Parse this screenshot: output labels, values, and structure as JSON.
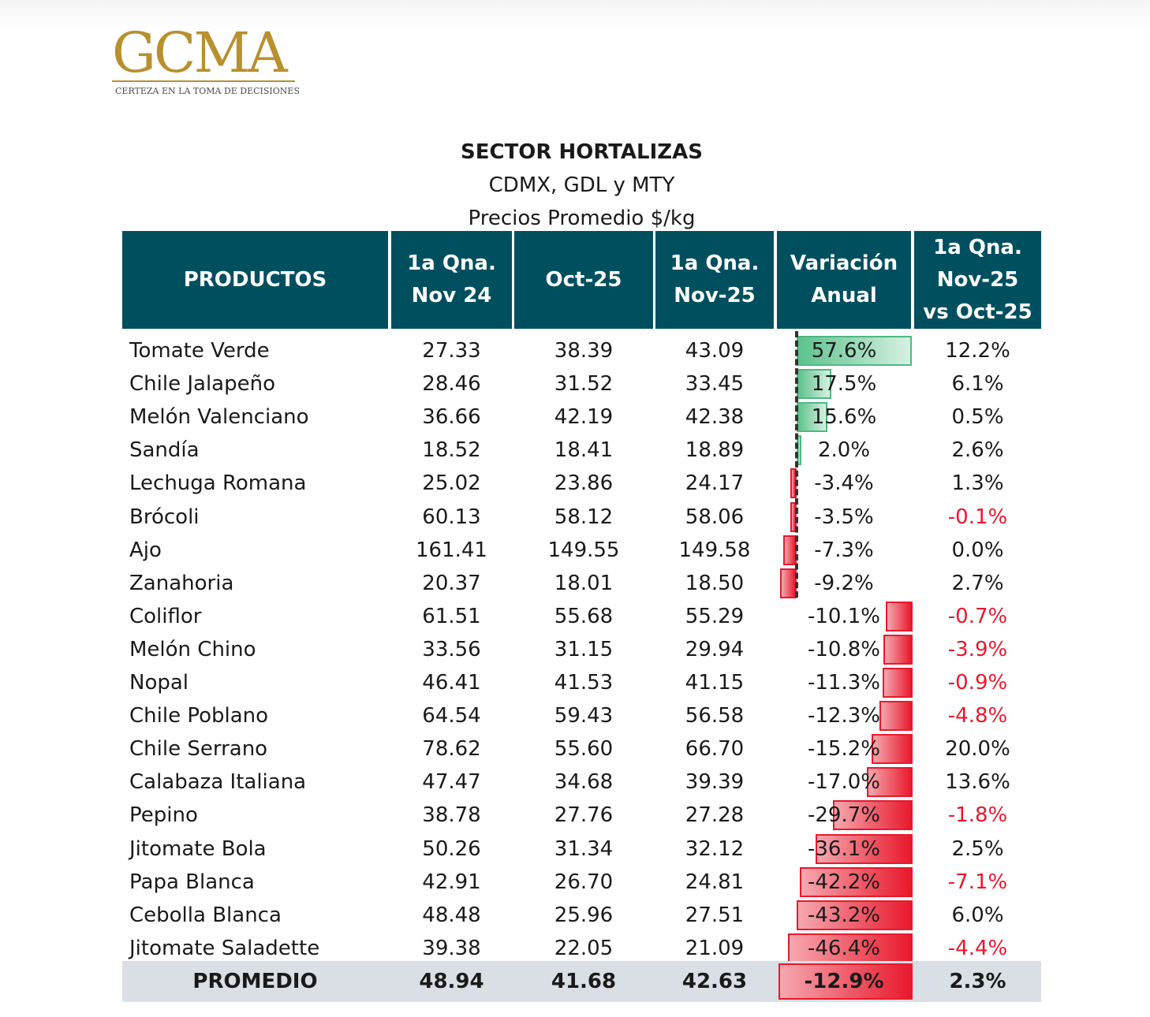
{
  "logo": {
    "name": "GCMA",
    "tagline": "CERTEZA EN LA TOMA DE DECISIONES"
  },
  "titles": {
    "main": "SECTOR HORTALIZAS",
    "sub": "CDMX, GDL y MTY",
    "unit": "Precios Promedio $/kg"
  },
  "headers": {
    "productos": "PRODUCTOS",
    "col1_l1": "1a Qna.",
    "col1_l2": "Nov 24",
    "col2": "Oct-25",
    "col3_l1": "1a Qna.",
    "col3_l2": "Nov-25",
    "col4_l1": "Variación",
    "col4_l2": "Anual",
    "col5_l1": "1a Qna.",
    "col5_l2": "Nov-25",
    "col5_l3": "vs Oct-25"
  },
  "colors": {
    "header_bg": "#004f5f",
    "positive": "#4eb882",
    "negative": "#e8192c",
    "avg_bg": "#d9dfe4"
  },
  "rows": [
    {
      "name": "Tomate Verde",
      "nov24": "27.33",
      "oct25": "38.39",
      "nov25": "43.09",
      "var": "57.6%",
      "var_value": 57.6,
      "vs": "12.2%",
      "vs_neg": false
    },
    {
      "name": "Chile Jalapeño",
      "nov24": "28.46",
      "oct25": "31.52",
      "nov25": "33.45",
      "var": "17.5%",
      "var_value": 17.5,
      "vs": "6.1%",
      "vs_neg": false
    },
    {
      "name": "Melón Valenciano",
      "nov24": "36.66",
      "oct25": "42.19",
      "nov25": "42.38",
      "var": "15.6%",
      "var_value": 15.6,
      "vs": "0.5%",
      "vs_neg": false
    },
    {
      "name": "Sandía",
      "nov24": "18.52",
      "oct25": "18.41",
      "nov25": "18.89",
      "var": "2.0%",
      "var_value": 2.0,
      "vs": "2.6%",
      "vs_neg": false
    },
    {
      "name": "Lechuga Romana",
      "nov24": "25.02",
      "oct25": "23.86",
      "nov25": "24.17",
      "var": "-3.4%",
      "var_value": -3.4,
      "vs": "1.3%",
      "vs_neg": false
    },
    {
      "name": "Brócoli",
      "nov24": "60.13",
      "oct25": "58.12",
      "nov25": "58.06",
      "var": "-3.5%",
      "var_value": -3.5,
      "vs": "-0.1%",
      "vs_neg": true
    },
    {
      "name": "Ajo",
      "nov24": "161.41",
      "oct25": "149.55",
      "nov25": "149.58",
      "var": "-7.3%",
      "var_value": -7.3,
      "vs": "0.0%",
      "vs_neg": false
    },
    {
      "name": "Zanahoria",
      "nov24": "20.37",
      "oct25": "18.01",
      "nov25": "18.50",
      "var": "-9.2%",
      "var_value": -9.2,
      "vs": "2.7%",
      "vs_neg": false
    },
    {
      "name": "Coliflor",
      "nov24": "61.51",
      "oct25": "55.68",
      "nov25": "55.29",
      "var": "-10.1%",
      "var_value": -10.1,
      "vs": "-0.7%",
      "vs_neg": true
    },
    {
      "name": "Melón Chino",
      "nov24": "33.56",
      "oct25": "31.15",
      "nov25": "29.94",
      "var": "-10.8%",
      "var_value": -10.8,
      "vs": "-3.9%",
      "vs_neg": true
    },
    {
      "name": "Nopal",
      "nov24": "46.41",
      "oct25": "41.53",
      "nov25": "41.15",
      "var": "-11.3%",
      "var_value": -11.3,
      "vs": "-0.9%",
      "vs_neg": true
    },
    {
      "name": "Chile Poblano",
      "nov24": "64.54",
      "oct25": "59.43",
      "nov25": "56.58",
      "var": "-12.3%",
      "var_value": -12.3,
      "vs": "-4.8%",
      "vs_neg": true
    },
    {
      "name": "Chile Serrano",
      "nov24": "78.62",
      "oct25": "55.60",
      "nov25": "66.70",
      "var": "-15.2%",
      "var_value": -15.2,
      "vs": "20.0%",
      "vs_neg": false
    },
    {
      "name": "Calabaza Italiana",
      "nov24": "47.47",
      "oct25": "34.68",
      "nov25": "39.39",
      "var": "-17.0%",
      "var_value": -17.0,
      "vs": "13.6%",
      "vs_neg": false
    },
    {
      "name": "Pepino",
      "nov24": "38.78",
      "oct25": "27.76",
      "nov25": "27.28",
      "var": "-29.7%",
      "var_value": -29.7,
      "vs": "-1.8%",
      "vs_neg": true
    },
    {
      "name": "Jitomate Bola",
      "nov24": "50.26",
      "oct25": "31.34",
      "nov25": "32.12",
      "var": "-36.1%",
      "var_value": -36.1,
      "vs": "2.5%",
      "vs_neg": false
    },
    {
      "name": "Papa Blanca",
      "nov24": "42.91",
      "oct25": "26.70",
      "nov25": "24.81",
      "var": "-42.2%",
      "var_value": -42.2,
      "vs": "-7.1%",
      "vs_neg": true
    },
    {
      "name": "Cebolla Blanca",
      "nov24": "48.48",
      "oct25": "25.96",
      "nov25": "27.51",
      "var": "-43.2%",
      "var_value": -43.2,
      "vs": "6.0%",
      "vs_neg": false
    },
    {
      "name": "Jitomate Saladette",
      "nov24": "39.38",
      "oct25": "22.05",
      "nov25": "21.09",
      "var": "-46.4%",
      "var_value": -46.4,
      "vs": "-4.4%",
      "vs_neg": true
    }
  ],
  "average": {
    "name": "PROMEDIO",
    "nov24": "48.94",
    "oct25": "41.68",
    "nov25": "42.63",
    "var": "-12.9%",
    "var_value": -12.9,
    "vs": "2.3%",
    "vs_neg": false
  }
}
